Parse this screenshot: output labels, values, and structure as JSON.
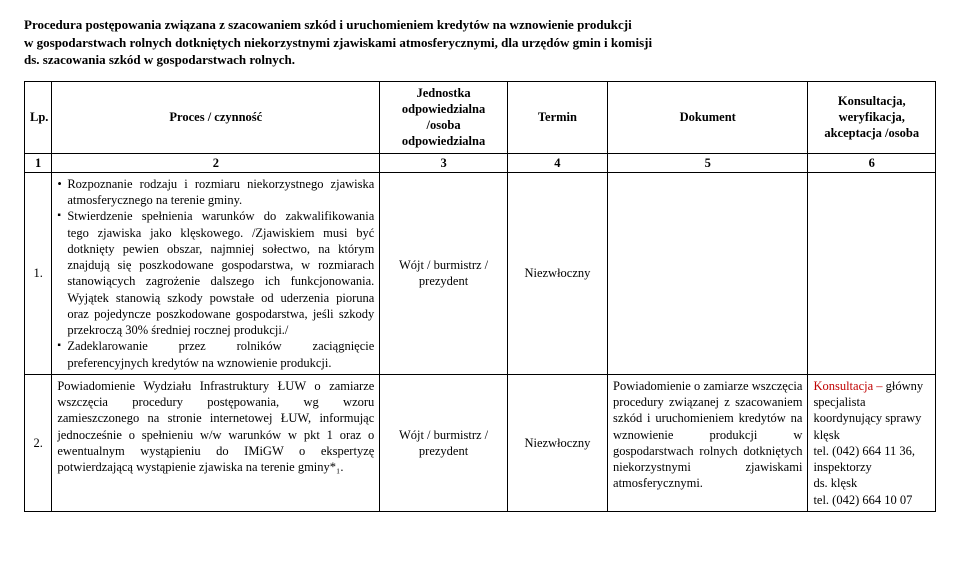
{
  "title_lines": [
    "Procedura postępowania związana z szacowaniem szkód i uruchomieniem kredytów na wznowienie produkcji",
    "w gospodarstwach rolnych dotkniętych niekorzystnymi zjawiskami atmosferycznymi, dla urzędów gmin i komisji",
    "ds. szacowania szkód w gospodarstwach rolnych."
  ],
  "headers": {
    "lp": "Lp.",
    "proces": "Proces / czynność",
    "jednostka": "Jednostka odpowiedzialna /osoba odpowiedzialna",
    "termin": "Termin",
    "dokument": "Dokument",
    "konsultacja": "Konsultacja, weryfikacja, akceptacja /osoba"
  },
  "numrow": [
    "1",
    "2",
    "3",
    "4",
    "5",
    "6"
  ],
  "row1": {
    "lp": "1.",
    "b1": "Rozpoznanie rodzaju i rozmiaru niekorzystnego zjawiska atmosferycznego na terenie gminy.",
    "b2": "Stwierdzenie spełnienia warunków do zakwalifikowania tego zjawiska jako klęskowego. /Zjawiskiem musi być dotknięty pewien obszar, najmniej sołectwo, na którym znajdują się poszkodowane gospodarstwa, w rozmiarach stanowiących zagrożenie dalszego ich funkcjonowania. Wyjątek stanowią szkody powstałe od uderzenia pioruna oraz pojedyncze poszkodowane gospodarstwa, jeśli szkody przekroczą 30% średniej rocznej produkcji./",
    "b3": "Zadeklarowanie przez rolników zaciągnięcie preferencyjnych kredytów na wznowienie produkcji.",
    "unit": "Wójt / burmistrz / prezydent",
    "term": "Niezwłoczny",
    "doc": "",
    "kons": ""
  },
  "row2": {
    "lp": "2.",
    "proc": "Powiadomienie Wydziału Infrastruktury ŁUW o zamiarze wszczęcia procedury postępowania, wg wzoru zamieszczonego na stronie internetowej ŁUW, informując jednocześnie o spełnieniu w/w warunków w pkt 1 oraz o ewentualnym wystąpieniu do IMiGW o ekspertyzę potwierdzającą wystąpienie zjawiska na terenie gminy*₁.",
    "unit": "Wójt / burmistrz / prezydent",
    "term": "Niezwłoczny",
    "doc": "Powiadomienie o zamiarze wszczęcia procedury związanej z szacowaniem szkód i uruchomieniem kredytów na wznowienie produkcji w gospodarstwach rolnych dotkniętych niekorzystnymi zjawiskami atmosferycznymi.",
    "kons": "Konsultacja – główny specjalista koordynujący sprawy klęsk\ntel. (042) 664 11 36, inspektorzy\nds. klęsk\ntel. (042) 664 10 07"
  },
  "style": {
    "font_family": "Times New Roman",
    "title_fontsize_pt": 13,
    "body_fontsize_pt": 12.5,
    "border_color": "#000000",
    "background_color": "#ffffff",
    "text_color": "#000000",
    "kons_red_color": "#c00000"
  }
}
